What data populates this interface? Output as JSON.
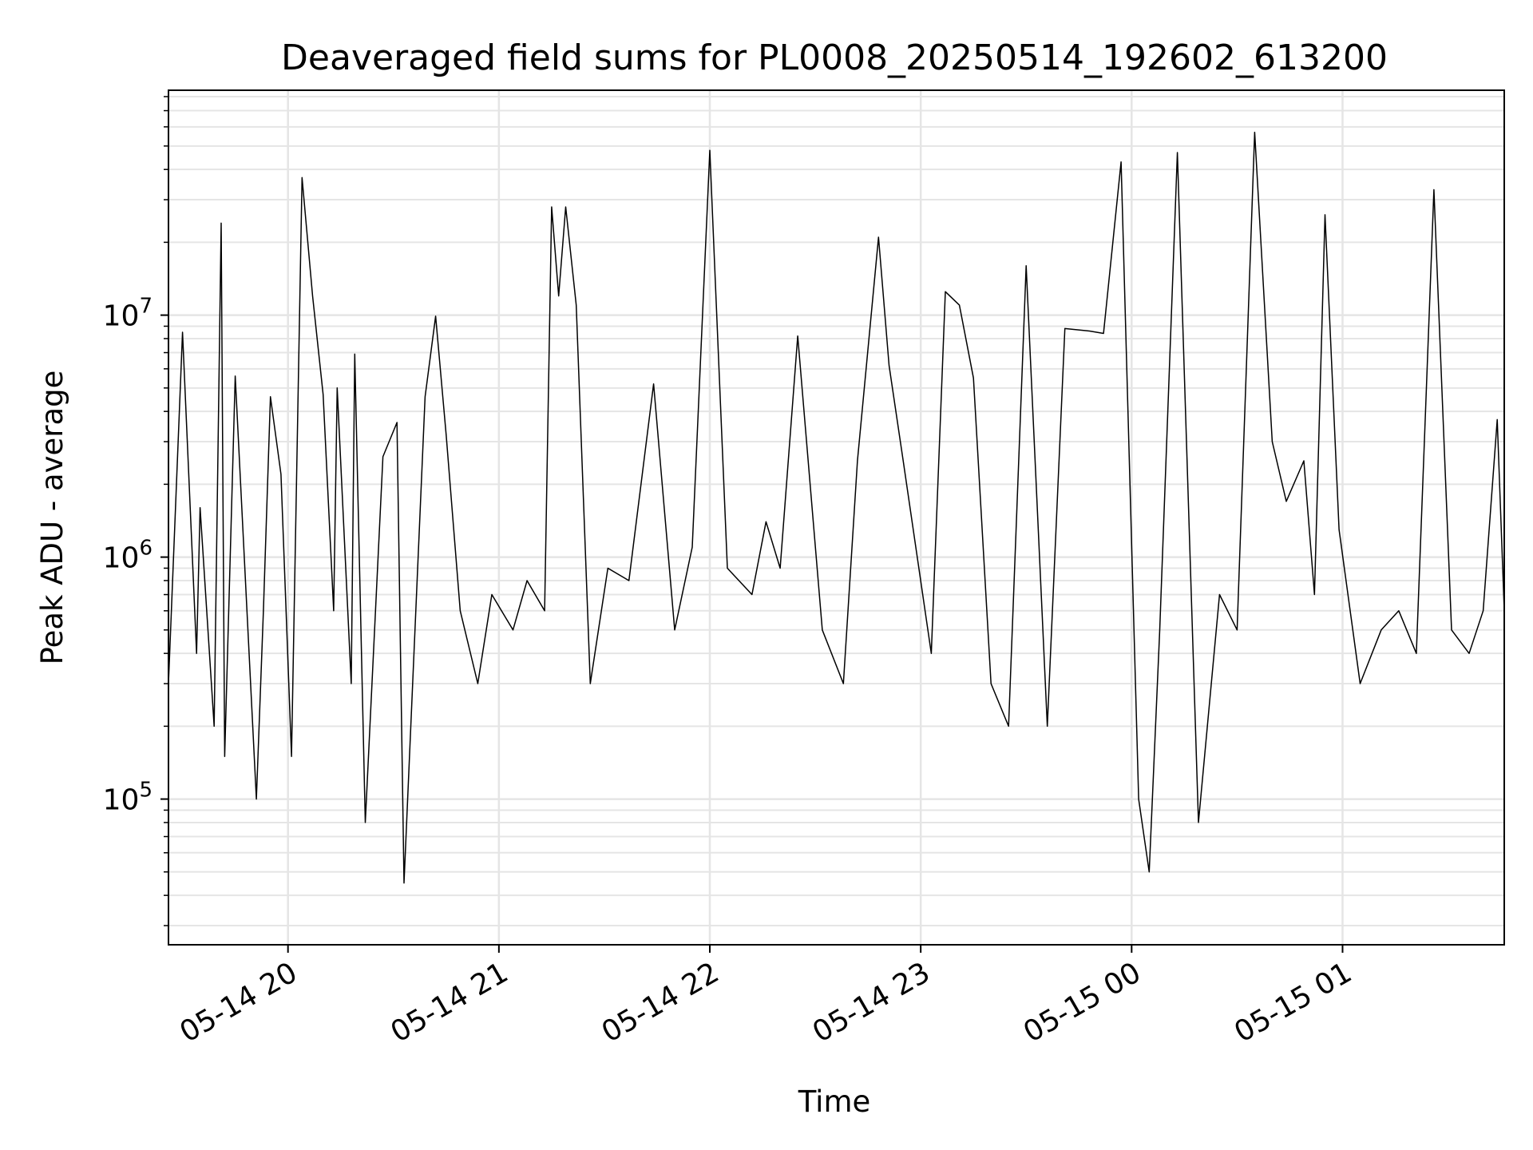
{
  "chart_data": {
    "type": "line",
    "title": "Deaveraged field sums for PL0008_20250514_192602_613200",
    "xlabel": "Time",
    "ylabel": "Peak ADU - average",
    "xlim": [
      "2025-05-14 19:26",
      "2025-05-15 01:46"
    ],
    "ylim": [
      25000,
      85000000
    ],
    "yscale": "log",
    "grid": true,
    "line_color": "#000000",
    "grid_color": "#e5e5e5",
    "x_ticks": [
      {
        "value": "2025-05-14 20:00",
        "label": "05-14 20"
      },
      {
        "value": "2025-05-14 21:00",
        "label": "05-14 21"
      },
      {
        "value": "2025-05-14 22:00",
        "label": "05-14 22"
      },
      {
        "value": "2025-05-14 23:00",
        "label": "05-14 23"
      },
      {
        "value": "2025-05-15 00:00",
        "label": "05-15 00"
      },
      {
        "value": "2025-05-15 01:00",
        "label": "05-15 01"
      }
    ],
    "y_ticks": [
      {
        "value": 100000,
        "base": "10",
        "exp": "5"
      },
      {
        "value": 1000000,
        "base": "10",
        "exp": "6"
      },
      {
        "value": 10000000,
        "base": "10",
        "exp": "7"
      }
    ],
    "series": [
      {
        "x": [
          "2025-05-14 19:26",
          "2025-05-14 19:30",
          "2025-05-14 19:34",
          "2025-05-14 19:35",
          "2025-05-14 19:39",
          "2025-05-14 19:41",
          "2025-05-14 19:42",
          "2025-05-14 19:45",
          "2025-05-14 19:51",
          "2025-05-14 19:53",
          "2025-05-14 19:55",
          "2025-05-14 19:58",
          "2025-05-14 20:01",
          "2025-05-14 20:04",
          "2025-05-14 20:07",
          "2025-05-14 20:10",
          "2025-05-14 20:13",
          "2025-05-14 20:14",
          "2025-05-14 20:18",
          "2025-05-14 20:19",
          "2025-05-14 20:22",
          "2025-05-14 20:27",
          "2025-05-14 20:31",
          "2025-05-14 20:33",
          "2025-05-14 20:39",
          "2025-05-14 20:42",
          "2025-05-14 20:45",
          "2025-05-14 20:49",
          "2025-05-14 20:54",
          "2025-05-14 20:58",
          "2025-05-14 21:04",
          "2025-05-14 21:08",
          "2025-05-14 21:13",
          "2025-05-14 21:15",
          "2025-05-14 21:17",
          "2025-05-14 21:19",
          "2025-05-14 21:22",
          "2025-05-14 21:26",
          "2025-05-14 21:31",
          "2025-05-14 21:37",
          "2025-05-14 21:44",
          "2025-05-14 21:50",
          "2025-05-14 21:55",
          "2025-05-14 22:00",
          "2025-05-14 22:05",
          "2025-05-14 22:12",
          "2025-05-14 22:16",
          "2025-05-14 22:20",
          "2025-05-14 22:25",
          "2025-05-14 22:32",
          "2025-05-14 22:38",
          "2025-05-14 22:42",
          "2025-05-14 22:48",
          "2025-05-14 22:51",
          "2025-05-14 22:55",
          "2025-05-14 23:03",
          "2025-05-14 23:07",
          "2025-05-14 23:11",
          "2025-05-14 23:15",
          "2025-05-14 23:20",
          "2025-05-14 23:25",
          "2025-05-14 23:30",
          "2025-05-14 23:36",
          "2025-05-14 23:41",
          "2025-05-14 23:48",
          "2025-05-14 23:52",
          "2025-05-14 23:57",
          "2025-05-15 00:02",
          "2025-05-15 00:05",
          "2025-05-15 00:08",
          "2025-05-15 00:13",
          "2025-05-15 00:19",
          "2025-05-15 00:25",
          "2025-05-15 00:30",
          "2025-05-15 00:35",
          "2025-05-15 00:40",
          "2025-05-15 00:44",
          "2025-05-15 00:49",
          "2025-05-15 00:52",
          "2025-05-15 00:55",
          "2025-05-15 00:59",
          "2025-05-15 01:05",
          "2025-05-15 01:11",
          "2025-05-15 01:16",
          "2025-05-15 01:21",
          "2025-05-15 01:26",
          "2025-05-15 01:31",
          "2025-05-15 01:36",
          "2025-05-15 01:40",
          "2025-05-15 01:44",
          "2025-05-15 01:46"
        ],
        "y": [
          300000,
          8500000,
          400000,
          1600000,
          200000,
          24000000,
          150000,
          5600000,
          100000,
          600000,
          4600000,
          2200000,
          150000,
          37000000,
          12000000,
          4700000,
          600000,
          5000000,
          300000,
          6900000,
          80000,
          2600000,
          3600000,
          45000,
          4600000,
          9900000,
          3200000,
          600000,
          300000,
          700000,
          500000,
          800000,
          600000,
          28000000,
          12000000,
          28000000,
          11000000,
          300000,
          900000,
          800000,
          5200000,
          500000,
          1100000,
          48000000,
          900000,
          700000,
          1400000,
          900000,
          8200000,
          500000,
          300000,
          2500000,
          21000000,
          6200000,
          2500000,
          400000,
          12500000,
          11000000,
          5500000,
          300000,
          200000,
          16000000,
          200000,
          8800000,
          8600000,
          8400000,
          43000000,
          100000,
          50000,
          500000,
          47000000,
          80000,
          700000,
          500000,
          57000000,
          3000000,
          1700000,
          2500000,
          700000,
          26000000,
          1300000,
          300000,
          500000,
          600000,
          400000,
          33000000,
          500000,
          400000,
          600000,
          3700000,
          600000
        ]
      }
    ]
  }
}
